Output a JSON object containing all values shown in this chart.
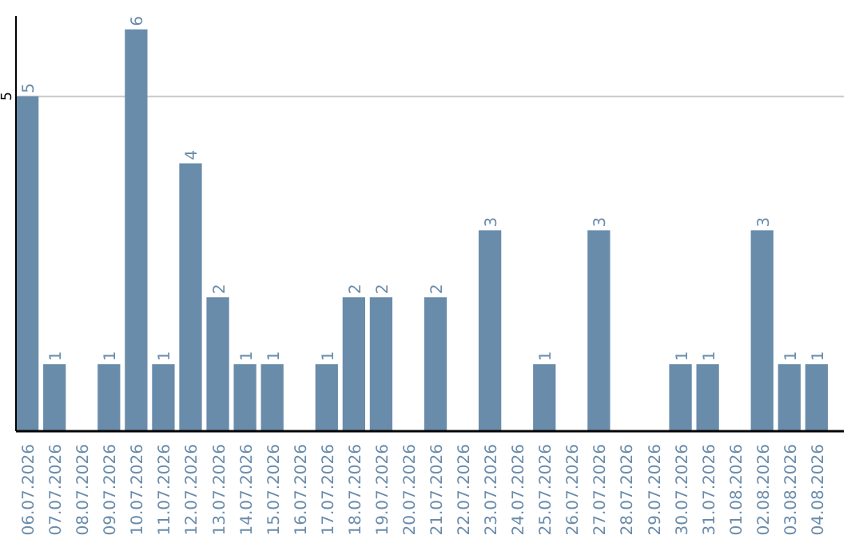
{
  "chart_data": {
    "type": "bar",
    "categories": [
      "06.07.2026",
      "07.07.2026",
      "08.07.2026",
      "09.07.2026",
      "10.07.2026",
      "11.07.2026",
      "12.07.2026",
      "13.07.2026",
      "14.07.2026",
      "15.07.2026",
      "16.07.2026",
      "17.07.2026",
      "18.07.2026",
      "19.07.2026",
      "20.07.2026",
      "21.07.2026",
      "22.07.2026",
      "23.07.2026",
      "24.07.2026",
      "25.07.2026",
      "26.07.2026",
      "27.07.2026",
      "28.07.2026",
      "29.07.2026",
      "30.07.2026",
      "31.07.2026",
      "01.08.2026",
      "02.08.2026",
      "03.08.2026",
      "04.08.2026"
    ],
    "values": [
      5,
      1,
      0,
      1,
      6,
      1,
      4,
      2,
      1,
      1,
      0,
      1,
      2,
      2,
      0,
      2,
      0,
      3,
      0,
      1,
      0,
      3,
      0,
      0,
      1,
      1,
      0,
      3,
      1,
      1
    ],
    "value_labels": [
      "5",
      "1",
      null,
      "1",
      "6",
      "1",
      "4",
      "2",
      "1",
      "1",
      null,
      "1",
      "2",
      "2",
      null,
      "2",
      null,
      "3",
      null,
      "1",
      null,
      "3",
      null,
      null,
      "1",
      "1",
      null,
      "3",
      "1",
      "1"
    ],
    "color": "#6a8cab",
    "ylim": [
      0,
      6.2
    ],
    "yticks": [
      5
    ],
    "grid": "y"
  }
}
